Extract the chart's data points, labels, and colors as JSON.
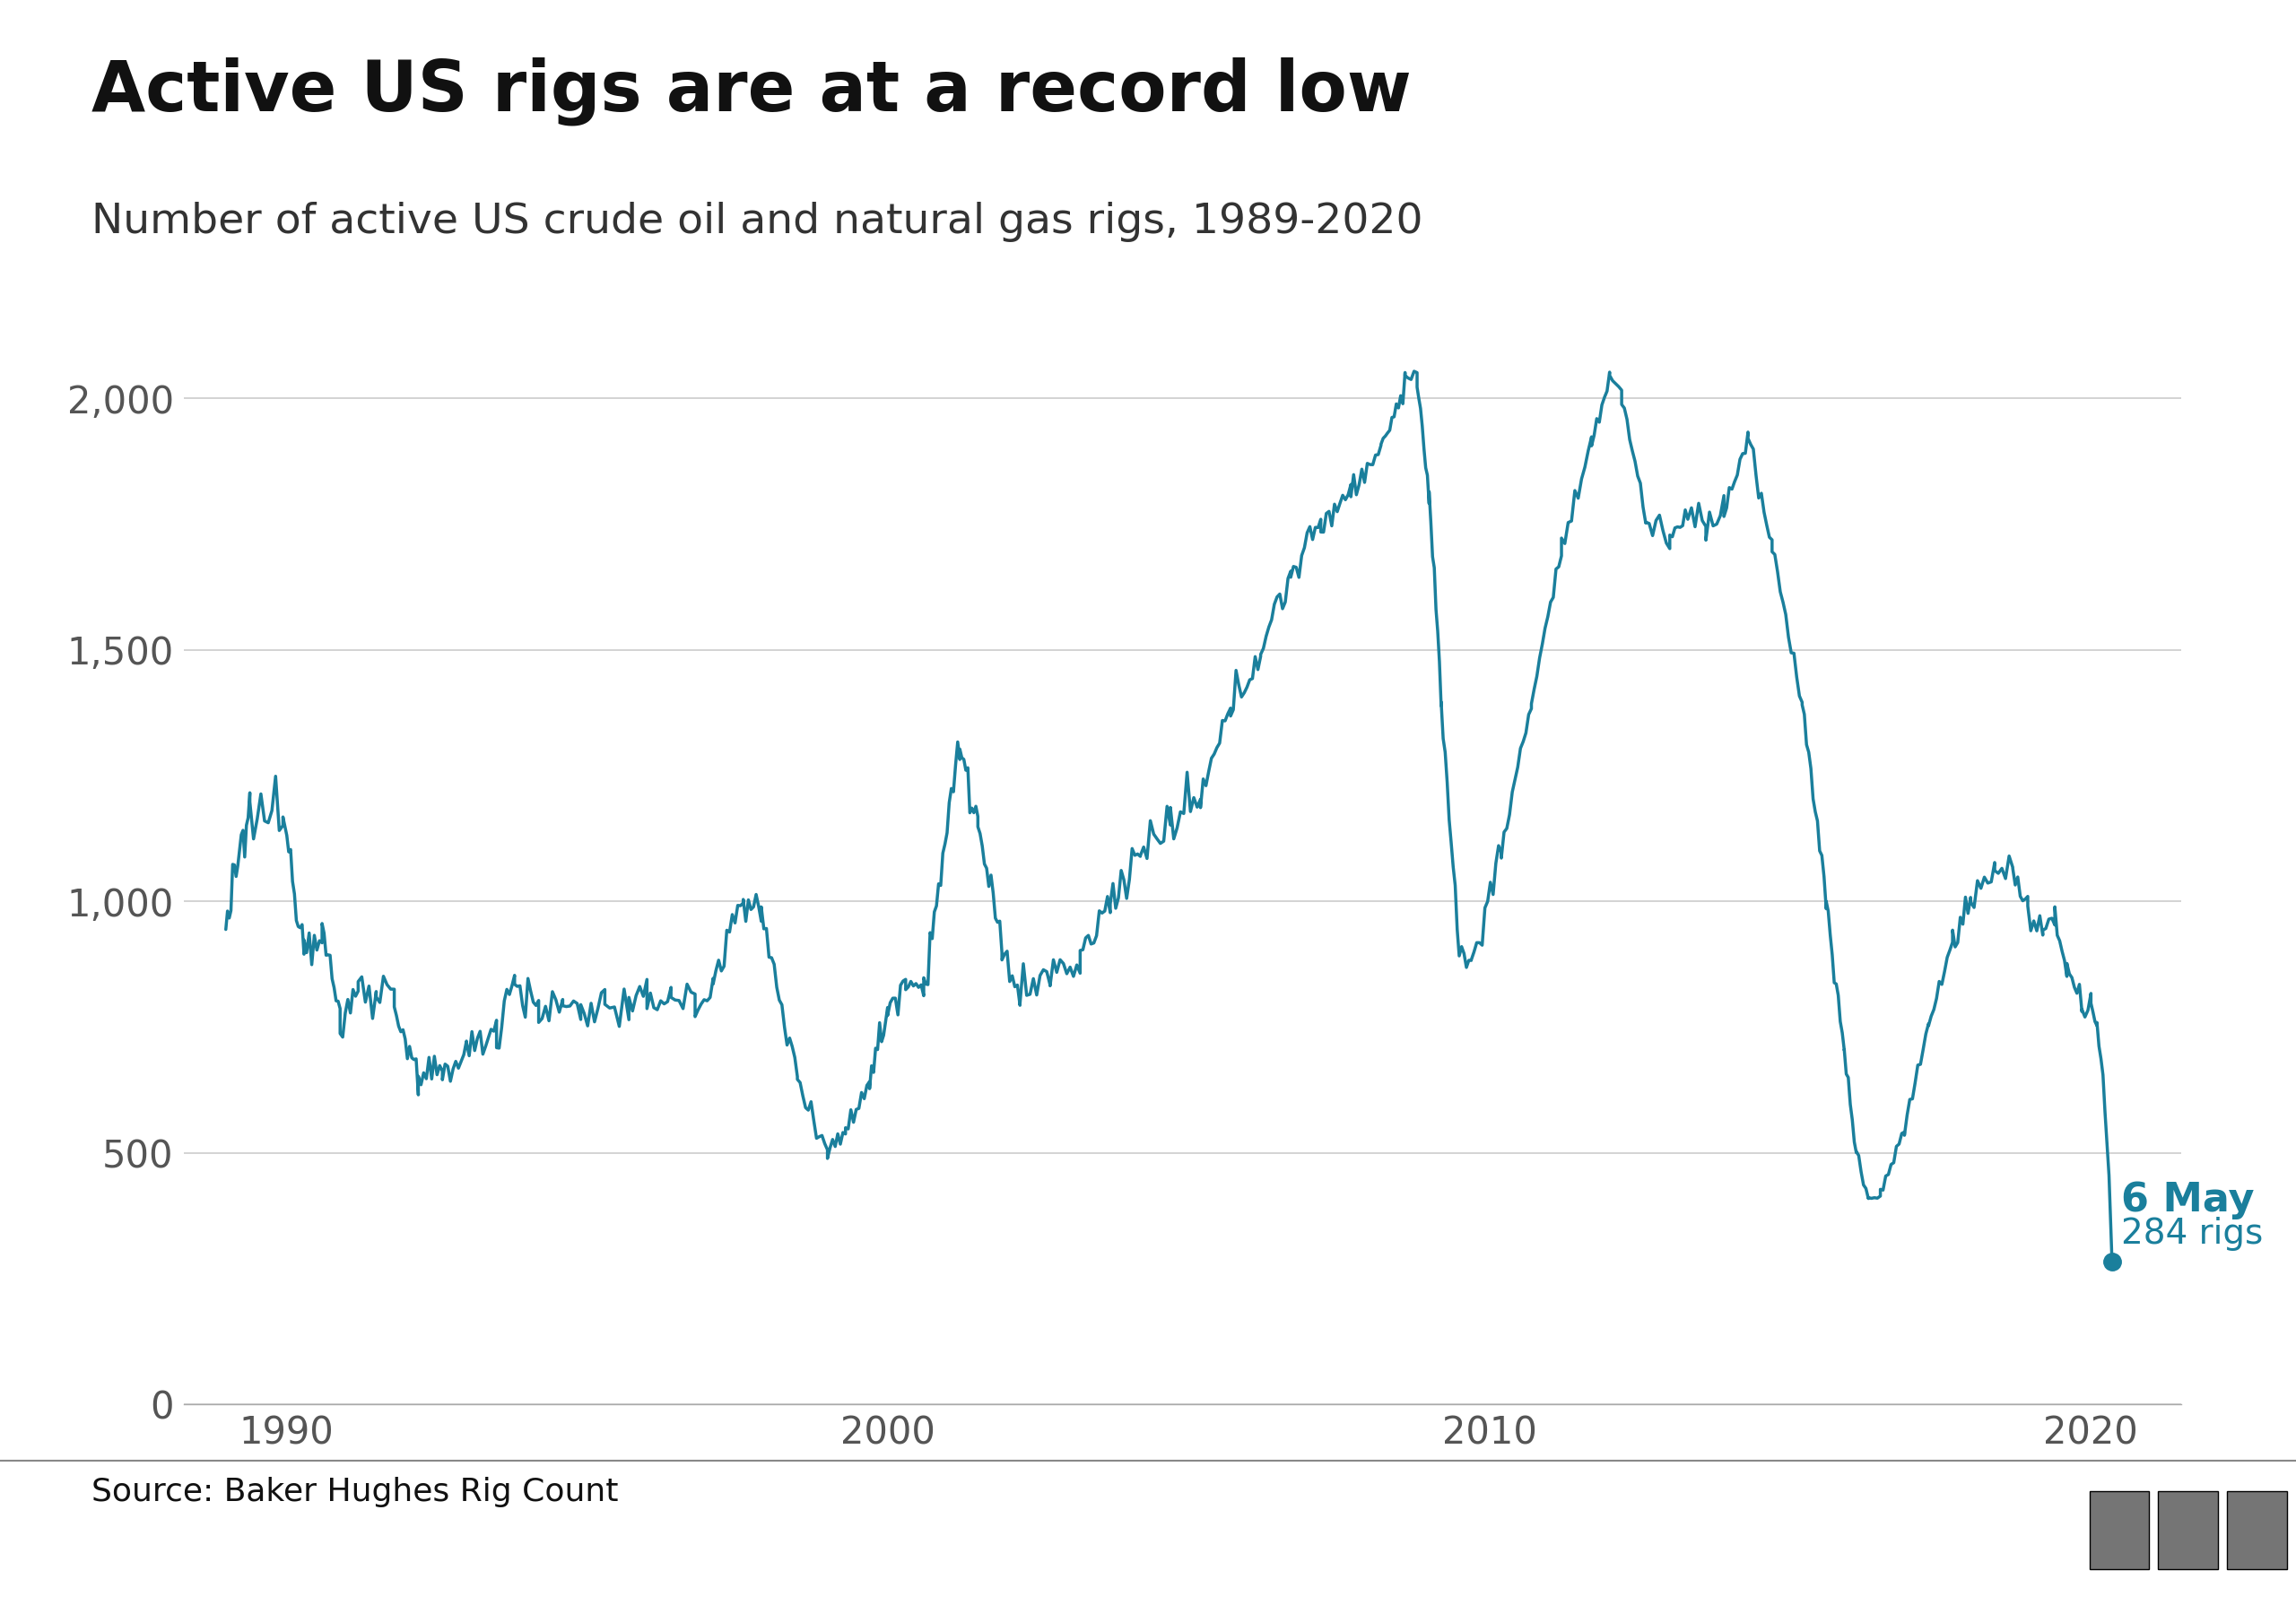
{
  "title": "Active US rigs are at a record low",
  "subtitle": "Number of active US crude oil and natural gas rigs, 1989-2020",
  "source": "Source: Baker Hughes Rig Count",
  "line_color": "#1a7f9c",
  "background_color": "#ffffff",
  "annotation_date": "6 May",
  "annotation_value": "284 rigs",
  "annotation_color": "#1a7f9c",
  "ylim": [
    0,
    2150
  ],
  "yticks": [
    0,
    500,
    1000,
    1500,
    2000
  ],
  "ytick_labels": [
    "0",
    "500",
    "1,000",
    "1,500",
    "2,000"
  ],
  "xticks": [
    1990,
    2000,
    2010,
    2020
  ],
  "xlim_left": 1988.3,
  "xlim_right": 2021.5,
  "title_fontsize": 56,
  "subtitle_fontsize": 34,
  "source_fontsize": 26,
  "tick_fontsize": 30,
  "annotation_date_fontsize": 32,
  "annotation_value_fontsize": 28,
  "grid_color": "#cccccc",
  "tick_color": "#555555",
  "bbc_box_color": "#757575"
}
